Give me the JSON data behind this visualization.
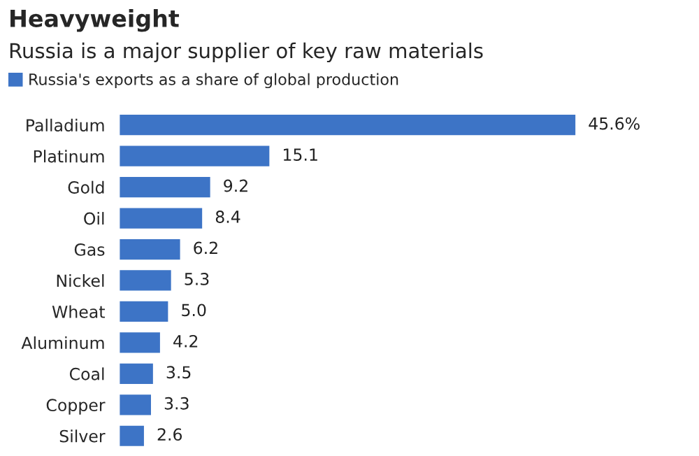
{
  "chart_data": {
    "type": "bar",
    "orientation": "horizontal",
    "title": "Heavyweight",
    "subtitle": "Russia is a major supplier of key raw materials",
    "categories": [
      "Palladium",
      "Platinum",
      "Gold",
      "Oil",
      "Gas",
      "Nickel",
      "Wheat",
      "Aluminum",
      "Coal",
      "Copper",
      "Silver"
    ],
    "series": [
      {
        "name": "Russia's exports as a share of global production",
        "color": "#3d74c6",
        "values": [
          45.6,
          15.1,
          9.2,
          8.4,
          6.2,
          5.3,
          5.0,
          4.2,
          3.5,
          3.3,
          2.6
        ],
        "value_labels": [
          "45.6%",
          "15.1",
          "9.2",
          "8.4",
          "6.2",
          "5.3",
          "5.0",
          "4.2",
          "3.5",
          "3.3",
          "2.6"
        ]
      }
    ],
    "legend": "top left",
    "tick_labels": "y",
    "grid": false
  }
}
